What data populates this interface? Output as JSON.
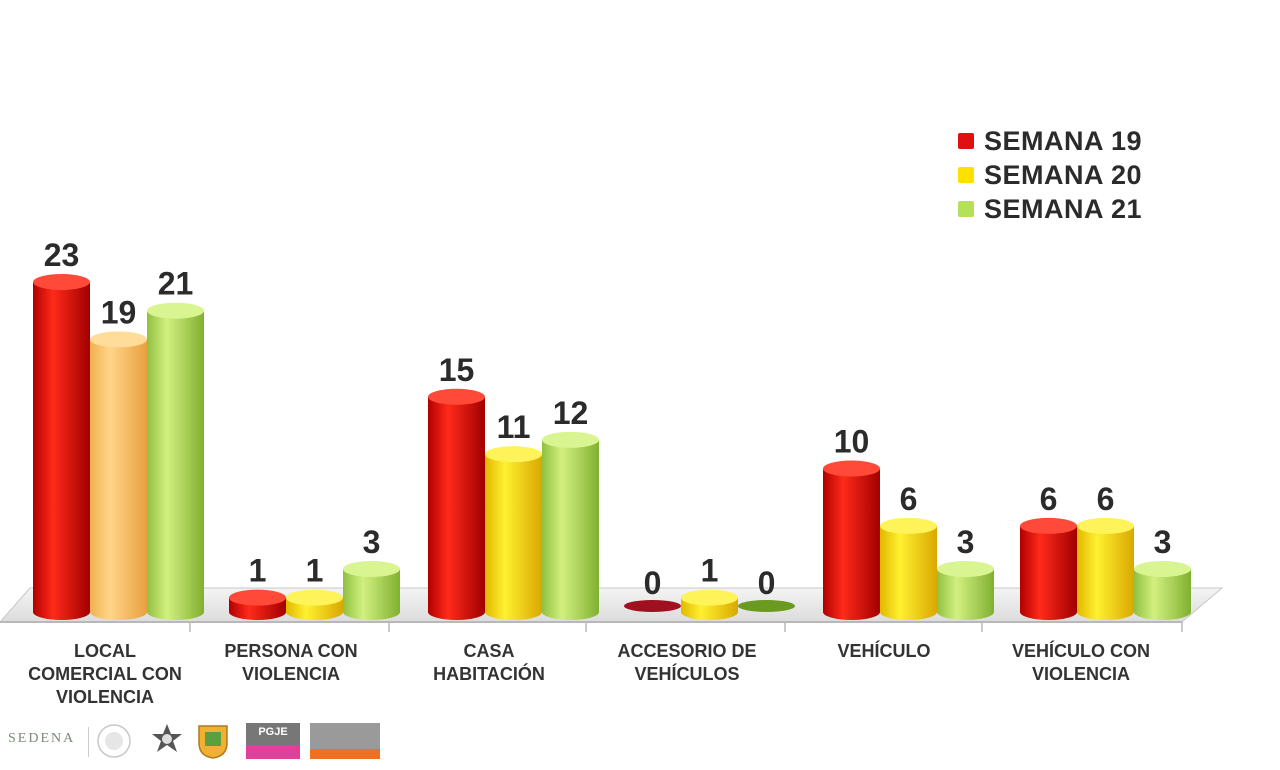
{
  "chart_data": {
    "type": "bar",
    "categories": [
      [
        "LOCAL",
        "COMERCIAL CON",
        "VIOLENCIA"
      ],
      [
        "PERSONA CON",
        "VIOLENCIA"
      ],
      [
        "CASA",
        "HABITACIÓN"
      ],
      [
        "ACCESORIO DE",
        "VEHÍCULOS"
      ],
      [
        "VEHÍCULO"
      ],
      [
        "VEHÍCULO CON",
        "VIOLENCIA"
      ]
    ],
    "series": [
      {
        "name": "SEMANA 19",
        "color": "#e01010",
        "values": [
          23,
          1,
          15,
          0,
          10,
          6
        ]
      },
      {
        "name": "SEMANA 20",
        "color": "#ffe000",
        "values": [
          19,
          1,
          11,
          1,
          6,
          6
        ]
      },
      {
        "name": "SEMANA 21",
        "color": "#b5e05a",
        "values": [
          21,
          3,
          12,
          0,
          3,
          3
        ]
      }
    ],
    "highlight_colors": {
      "SEMANA 20-0": "#ffc86a"
    },
    "ylim": [
      0,
      24
    ],
    "legend": "top-right",
    "grid": false
  },
  "footer": {
    "sedena": "SEDENA",
    "pgje": "PGJE"
  }
}
